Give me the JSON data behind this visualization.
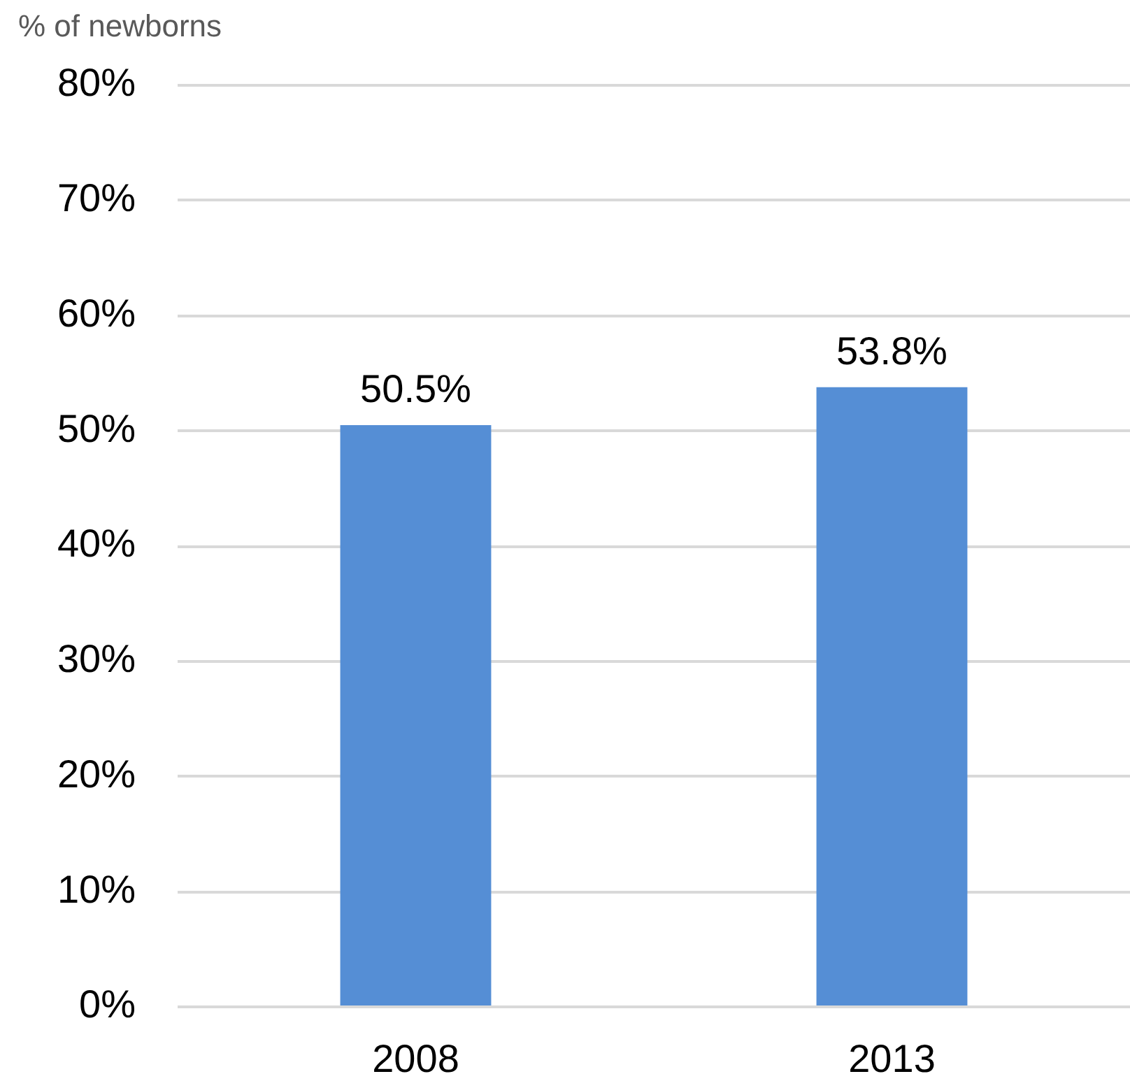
{
  "chart_data": {
    "type": "bar",
    "ylabel": "% of newborns",
    "categories": [
      "2008",
      "2013"
    ],
    "values": [
      50.5,
      53.8
    ],
    "value_labels": [
      "50.5%",
      "53.8%"
    ],
    "color": "#558ed5",
    "ylim": [
      0,
      80
    ],
    "yticks": [
      {
        "value": 0,
        "label": "0%"
      },
      {
        "value": 10,
        "label": "10%"
      },
      {
        "value": 20,
        "label": "20%"
      },
      {
        "value": 30,
        "label": "30%"
      },
      {
        "value": 40,
        "label": "40%"
      },
      {
        "value": 50,
        "label": "50%"
      },
      {
        "value": 60,
        "label": "60%"
      },
      {
        "value": 70,
        "label": "70%"
      },
      {
        "value": 80,
        "label": "80%"
      }
    ],
    "grid": "y"
  }
}
